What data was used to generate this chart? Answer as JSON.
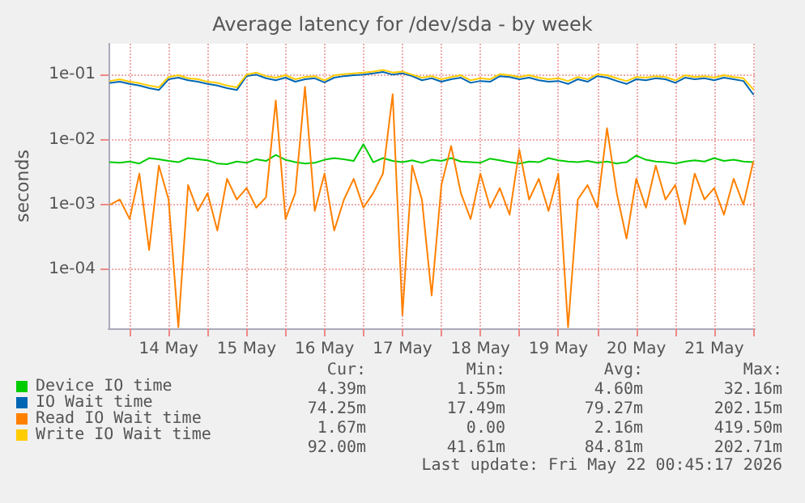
{
  "chart_data": {
    "type": "line",
    "title": "Average latency for /dev/sda - by week",
    "ylabel": "seconds",
    "x": [
      "2026-05-13T18:00",
      "2026-05-13T21:00",
      "2026-05-14T00:00",
      "2026-05-14T03:00",
      "2026-05-14T06:00",
      "2026-05-14T09:00",
      "2026-05-14T12:00",
      "2026-05-14T15:00",
      "2026-05-14T18:00",
      "2026-05-14T21:00",
      "2026-05-15T00:00",
      "2026-05-15T03:00",
      "2026-05-15T06:00",
      "2026-05-15T09:00",
      "2026-05-15T12:00",
      "2026-05-15T15:00",
      "2026-05-15T18:00",
      "2026-05-15T21:00",
      "2026-05-16T00:00",
      "2026-05-16T03:00",
      "2026-05-16T06:00",
      "2026-05-16T09:00",
      "2026-05-16T12:00",
      "2026-05-16T15:00",
      "2026-05-16T18:00",
      "2026-05-16T21:00",
      "2026-05-17T00:00",
      "2026-05-17T03:00",
      "2026-05-17T06:00",
      "2026-05-17T09:00",
      "2026-05-17T12:00",
      "2026-05-17T15:00",
      "2026-05-17T18:00",
      "2026-05-17T21:00",
      "2026-05-18T00:00",
      "2026-05-18T03:00",
      "2026-05-18T06:00",
      "2026-05-18T09:00",
      "2026-05-18T12:00",
      "2026-05-18T15:00",
      "2026-05-18T18:00",
      "2026-05-18T21:00",
      "2026-05-19T00:00",
      "2026-05-19T03:00",
      "2026-05-19T06:00",
      "2026-05-19T09:00",
      "2026-05-19T12:00",
      "2026-05-19T15:00",
      "2026-05-19T18:00",
      "2026-05-19T21:00",
      "2026-05-20T00:00",
      "2026-05-20T03:00",
      "2026-05-20T06:00",
      "2026-05-20T09:00",
      "2026-05-20T12:00",
      "2026-05-20T15:00",
      "2026-05-20T18:00",
      "2026-05-20T21:00",
      "2026-05-21T00:00",
      "2026-05-21T03:00",
      "2026-05-21T06:00",
      "2026-05-21T09:00",
      "2026-05-21T12:00",
      "2026-05-21T15:00",
      "2026-05-21T18:00",
      "2026-05-21T21:00",
      "2026-05-22T00:00"
    ],
    "series": [
      {
        "name": "Device IO time",
        "color": "#00cc00",
        "values": [
          0.0045,
          0.0044,
          0.0046,
          0.0043,
          0.0052,
          0.005,
          0.0047,
          0.0045,
          0.0052,
          0.005,
          0.0048,
          0.0043,
          0.0042,
          0.0046,
          0.0044,
          0.005,
          0.0047,
          0.0058,
          0.0049,
          0.0045,
          0.0043,
          0.0044,
          0.0049,
          0.0052,
          0.005,
          0.0047,
          0.0085,
          0.0045,
          0.0052,
          0.0047,
          0.0045,
          0.0048,
          0.0044,
          0.0049,
          0.0047,
          0.0052,
          0.0046,
          0.0045,
          0.0044,
          0.0051,
          0.0048,
          0.0045,
          0.0043,
          0.0046,
          0.0045,
          0.0052,
          0.0048,
          0.0046,
          0.0045,
          0.0047,
          0.0044,
          0.0046,
          0.0043,
          0.0045,
          0.0057,
          0.0049,
          0.0046,
          0.0045,
          0.0043,
          0.0046,
          0.0048,
          0.0046,
          0.0052,
          0.0047,
          0.0049,
          0.0046,
          0.0045
        ]
      },
      {
        "name": "IO Wait time",
        "color": "#0066b3",
        "values": [
          0.075,
          0.078,
          0.072,
          0.068,
          0.062,
          0.058,
          0.085,
          0.09,
          0.082,
          0.078,
          0.072,
          0.068,
          0.062,
          0.058,
          0.095,
          0.1,
          0.088,
          0.082,
          0.09,
          0.078,
          0.085,
          0.088,
          0.076,
          0.09,
          0.095,
          0.098,
          0.1,
          0.105,
          0.11,
          0.1,
          0.105,
          0.095,
          0.082,
          0.088,
          0.078,
          0.085,
          0.09,
          0.075,
          0.08,
          0.078,
          0.095,
          0.092,
          0.085,
          0.09,
          0.082,
          0.078,
          0.08,
          0.072,
          0.085,
          0.078,
          0.095,
          0.09,
          0.08,
          0.072,
          0.085,
          0.082,
          0.088,
          0.085,
          0.075,
          0.09,
          0.085,
          0.088,
          0.082,
          0.09,
          0.085,
          0.08,
          0.05
        ]
      },
      {
        "name": "Read IO Wait time",
        "color": "#ff8000",
        "values": [
          0.001,
          0.0012,
          0.0006,
          0.003,
          0.0002,
          0.004,
          0.0012,
          1.3e-05,
          0.002,
          0.0008,
          0.0015,
          0.0004,
          0.0025,
          0.0012,
          0.0018,
          0.0009,
          0.0013,
          0.04,
          0.0006,
          0.0015,
          0.065,
          0.0008,
          0.003,
          0.0004,
          0.0012,
          0.0025,
          0.0009,
          0.0015,
          0.003,
          0.05,
          2e-05,
          0.004,
          0.0012,
          4e-05,
          0.002,
          0.008,
          0.0015,
          0.0006,
          0.003,
          0.0009,
          0.0018,
          0.0007,
          0.007,
          0.0012,
          0.0025,
          0.0008,
          0.003,
          1.3e-05,
          0.0012,
          0.002,
          0.0009,
          0.015,
          0.0015,
          0.0003,
          0.0025,
          0.0009,
          0.004,
          0.0012,
          0.002,
          0.0005,
          0.003,
          0.0012,
          0.0018,
          0.0007,
          0.0025,
          0.001,
          0.0045
        ]
      },
      {
        "name": "Write IO Wait time",
        "color": "#ffcc00",
        "values": [
          0.08,
          0.085,
          0.078,
          0.074,
          0.068,
          0.064,
          0.092,
          0.098,
          0.088,
          0.085,
          0.078,
          0.075,
          0.068,
          0.064,
          0.1,
          0.108,
          0.095,
          0.09,
          0.098,
          0.085,
          0.092,
          0.095,
          0.082,
          0.098,
          0.102,
          0.105,
          0.108,
          0.112,
          0.118,
          0.108,
          0.112,
          0.1,
          0.09,
          0.095,
          0.085,
          0.092,
          0.098,
          0.082,
          0.088,
          0.085,
          0.102,
          0.098,
          0.092,
          0.098,
          0.09,
          0.085,
          0.088,
          0.08,
          0.092,
          0.085,
          0.102,
          0.098,
          0.088,
          0.08,
          0.092,
          0.09,
          0.095,
          0.092,
          0.082,
          0.098,
          0.092,
          0.095,
          0.09,
          0.098,
          0.092,
          0.088,
          0.06
        ]
      }
    ],
    "xlim": [
      "2026-05-13T17:30",
      "2026-05-22T00:30"
    ],
    "xticks": [
      {
        "value": "2026-05-14T00:00",
        "label": null
      },
      {
        "value": "2026-05-14T12:00",
        "label": "14 May"
      },
      {
        "value": "2026-05-15T00:00",
        "label": null
      },
      {
        "value": "2026-05-15T12:00",
        "label": "15 May"
      },
      {
        "value": "2026-05-16T00:00",
        "label": null
      },
      {
        "value": "2026-05-16T12:00",
        "label": "16 May"
      },
      {
        "value": "2026-05-17T00:00",
        "label": null
      },
      {
        "value": "2026-05-17T12:00",
        "label": "17 May"
      },
      {
        "value": "2026-05-18T00:00",
        "label": null
      },
      {
        "value": "2026-05-18T12:00",
        "label": "18 May"
      },
      {
        "value": "2026-05-19T00:00",
        "label": null
      },
      {
        "value": "2026-05-19T12:00",
        "label": "19 May"
      },
      {
        "value": "2026-05-20T00:00",
        "label": null
      },
      {
        "value": "2026-05-20T12:00",
        "label": "20 May"
      },
      {
        "value": "2026-05-21T00:00",
        "label": null
      },
      {
        "value": "2026-05-21T12:00",
        "label": "21 May"
      },
      {
        "value": "2026-05-22T00:00",
        "label": null
      }
    ],
    "ylim": [
      1.25e-05,
      0.3
    ],
    "yticks": [
      {
        "value": 0.0001,
        "label": "1e-04"
      },
      {
        "value": 0.001,
        "label": "1e-03"
      },
      {
        "value": 0.01,
        "label": "1e-02"
      },
      {
        "value": 0.1,
        "label": "1e-01"
      }
    ],
    "log": "y",
    "grid": true,
    "legend": "bottom",
    "annotations": [
      "Cur:",
      "Min:",
      "Avg:",
      "Max:",
      "4.39m",
      "1.55m",
      "4.60m",
      "32.16m",
      "74.25m",
      "17.49m",
      "79.27m",
      "202.15m",
      "1.67m",
      "0.00",
      "2.16m",
      "419.50m",
      "92.00m",
      "41.61m",
      "84.81m",
      "202.71m",
      "Last update: Fri May 22 00:45:17 2026"
    ]
  }
}
